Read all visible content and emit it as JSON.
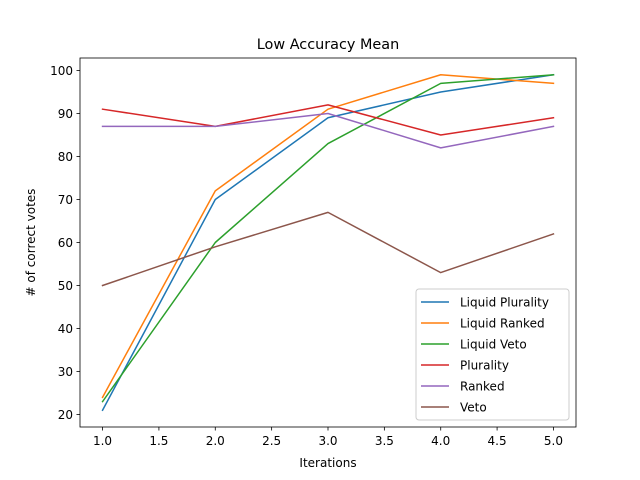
{
  "chart_data": {
    "type": "line",
    "title": "Low Accuracy Mean",
    "xlabel": "Iterations",
    "ylabel": "# of correct votes",
    "x": [
      1,
      2,
      3,
      4,
      5
    ],
    "xlim": [
      0.8,
      5.2
    ],
    "ylim": [
      17.1,
      102.9
    ],
    "xticks": [
      "1.0",
      "1.5",
      "2.0",
      "2.5",
      "3.0",
      "3.5",
      "4.0",
      "4.5",
      "5.0"
    ],
    "yticks": [
      "20",
      "30",
      "40",
      "50",
      "60",
      "70",
      "80",
      "90",
      "100"
    ],
    "grid": false,
    "legend_position": "lower-right",
    "series": [
      {
        "name": "Liquid Plurality",
        "color": "#1f77b4",
        "values": [
          21,
          70,
          89,
          95,
          99
        ]
      },
      {
        "name": "Liquid Ranked",
        "color": "#ff7f0e",
        "values": [
          24,
          72,
          91,
          99,
          97
        ]
      },
      {
        "name": "Liquid Veto",
        "color": "#2ca02c",
        "values": [
          23,
          60,
          83,
          97,
          99
        ]
      },
      {
        "name": "Plurality",
        "color": "#d62728",
        "values": [
          91,
          87,
          92,
          85,
          89
        ]
      },
      {
        "name": "Ranked",
        "color": "#9467bd",
        "values": [
          87,
          87,
          90,
          82,
          87
        ]
      },
      {
        "name": "Veto",
        "color": "#8c564b",
        "values": [
          50,
          59,
          67,
          53,
          62
        ]
      }
    ]
  }
}
